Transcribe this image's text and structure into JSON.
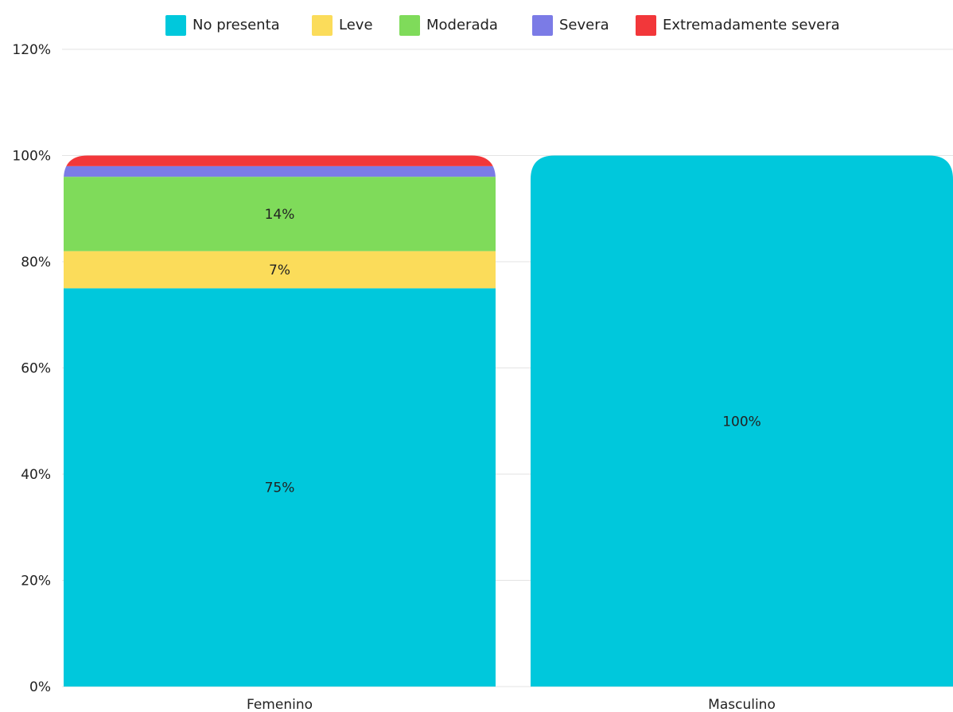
{
  "chart_data": {
    "type": "bar",
    "stacked": true,
    "categories": [
      "Femenino",
      "Masculino"
    ],
    "series": [
      {
        "name": "No presenta",
        "color": "#00c8dc",
        "values": [
          75,
          100
        ],
        "labels": [
          "75%",
          "100%"
        ]
      },
      {
        "name": "Leve",
        "color": "#fbdc5a",
        "values": [
          7,
          0
        ],
        "labels": [
          "7%",
          ""
        ]
      },
      {
        "name": "Moderada",
        "color": "#7fdb5a",
        "values": [
          14,
          0
        ],
        "labels": [
          "14%",
          ""
        ]
      },
      {
        "name": "Severa",
        "color": "#7b7be6",
        "values": [
          2,
          0
        ],
        "labels": [
          "",
          ""
        ]
      },
      {
        "name": "Extremadamente severa",
        "color": "#f2373a",
        "values": [
          2,
          0
        ],
        "labels": [
          "",
          ""
        ]
      }
    ],
    "ylim": [
      0,
      120
    ],
    "yticks": [
      0,
      20,
      40,
      60,
      80,
      100,
      120
    ],
    "ytick_labels": [
      "0%",
      "20%",
      "40%",
      "60%",
      "80%",
      "100%",
      "120%"
    ],
    "grid": true,
    "legend_position": "top"
  }
}
